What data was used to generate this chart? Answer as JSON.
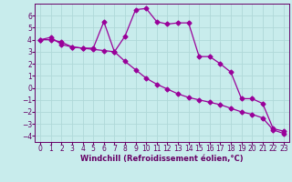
{
  "xlabel": "Windchill (Refroidissement éolien,°C)",
  "bg_color": "#c8ecec",
  "grid_color": "#b0d8d8",
  "line_color": "#990099",
  "line1_x": [
    0,
    1,
    2,
    3,
    4,
    5,
    6,
    7,
    8,
    9,
    10,
    11,
    12,
    13,
    14,
    15,
    16,
    17,
    18,
    19,
    20,
    21,
    22,
    23
  ],
  "line1_y": [
    4.0,
    4.2,
    3.6,
    3.4,
    3.3,
    3.3,
    5.5,
    3.0,
    4.3,
    6.5,
    6.6,
    5.5,
    5.3,
    5.4,
    5.4,
    2.6,
    2.6,
    2.0,
    1.3,
    -0.9,
    -0.9,
    -1.3,
    -3.4,
    -3.6
  ],
  "line2_x": [
    0,
    1,
    2,
    3,
    4,
    5,
    6,
    7,
    8,
    9,
    10,
    11,
    12,
    13,
    14,
    15,
    16,
    17,
    18,
    19,
    20,
    21,
    22,
    23
  ],
  "line2_y": [
    4.0,
    4.0,
    3.8,
    3.4,
    3.3,
    3.2,
    3.1,
    3.0,
    2.2,
    1.5,
    0.8,
    0.3,
    -0.1,
    -0.5,
    -0.8,
    -1.0,
    -1.2,
    -1.4,
    -1.7,
    -2.0,
    -2.2,
    -2.5,
    -3.5,
    -3.8
  ],
  "ylim": [
    -4.5,
    7.0
  ],
  "xlim": [
    -0.5,
    23.5
  ],
  "yticks": [
    6,
    5,
    4,
    3,
    2,
    1,
    0,
    -1,
    -2,
    -3,
    -4
  ],
  "xticks": [
    0,
    1,
    2,
    3,
    4,
    5,
    6,
    7,
    8,
    9,
    10,
    11,
    12,
    13,
    14,
    15,
    16,
    17,
    18,
    19,
    20,
    21,
    22,
    23
  ],
  "marker": "D",
  "marker_size": 2.5,
  "line_width": 0.9,
  "tick_fontsize": 5.5,
  "xlabel_fontsize": 6.0,
  "spine_color": "#660066",
  "tick_color": "#660066",
  "label_color": "#660066"
}
